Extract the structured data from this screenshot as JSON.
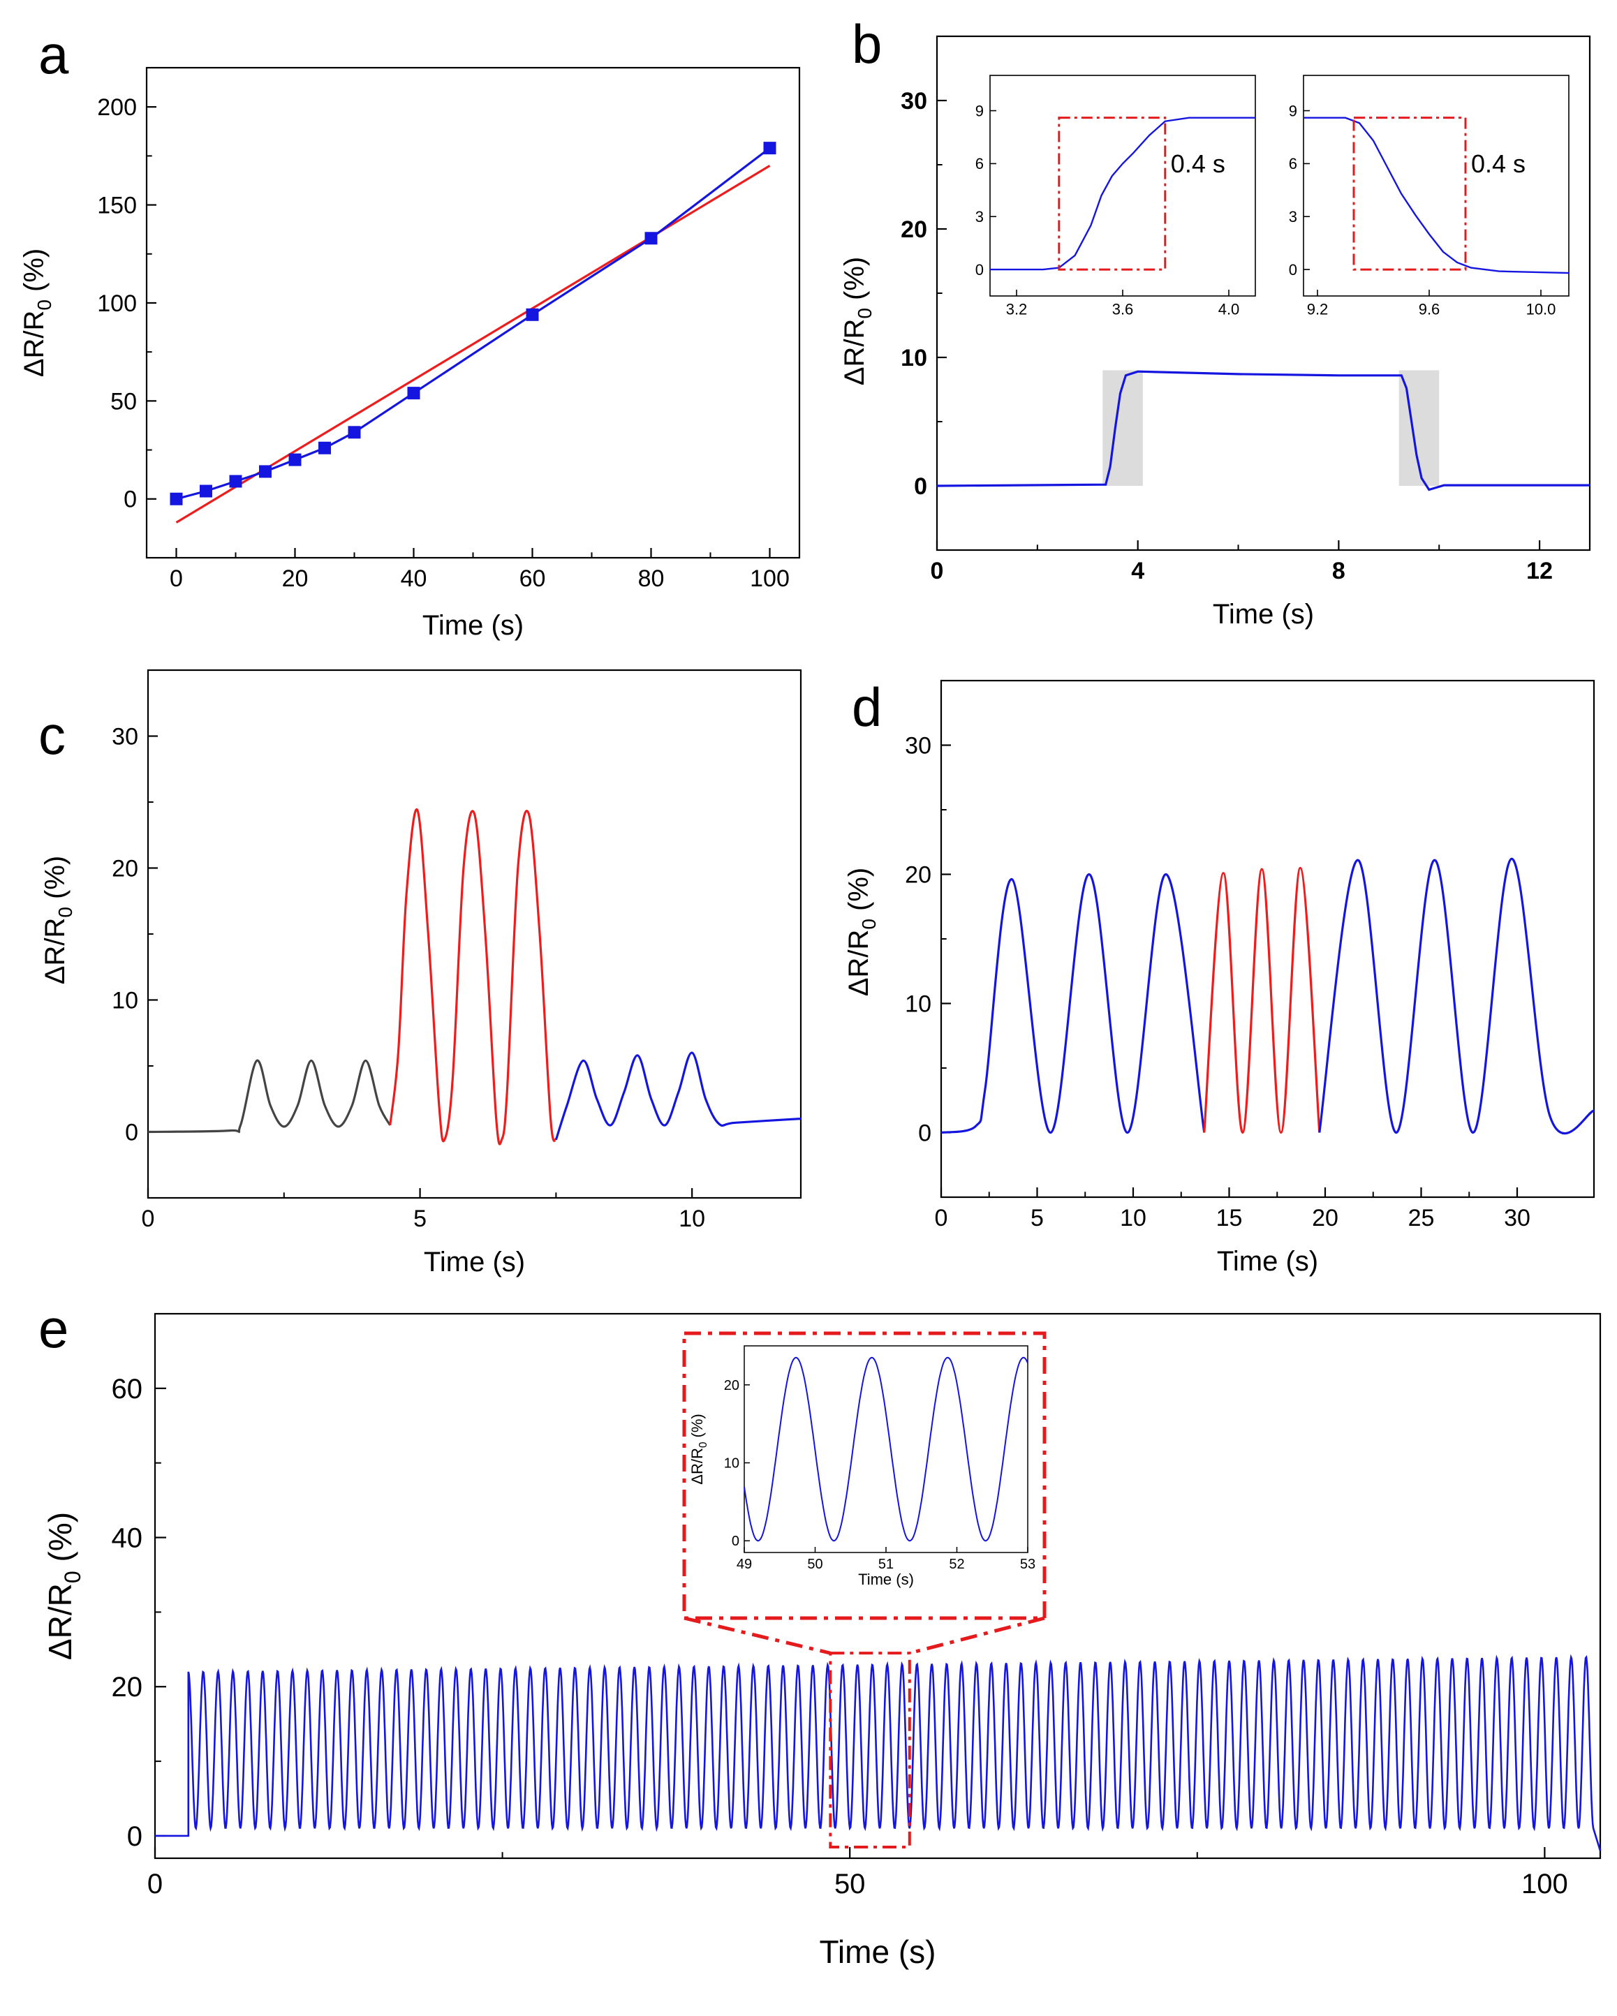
{
  "colors": {
    "blue": "#1515e0",
    "red": "#ee1c1c",
    "gray": "#444444",
    "shade": "#dcdcdc",
    "inset_red": "#e41a1c"
  },
  "chart_data": [
    {
      "id": "a",
      "letter": "a",
      "type": "scatter",
      "xlabel": "Time (s)",
      "ylabel_pre": "ΔR/R",
      "ylabel_sub": "0",
      "ylabel_post": " (%)",
      "xlim": [
        -5,
        105
      ],
      "ylim": [
        -30,
        220
      ],
      "xticks": [
        0,
        20,
        40,
        60,
        80,
        100
      ],
      "yticks": [
        0,
        50,
        100,
        150,
        200
      ],
      "series": [
        {
          "style": "marker-line",
          "color": "blue",
          "x": [
            0,
            5,
            10,
            15,
            20,
            25,
            30,
            40,
            60,
            80,
            100
          ],
          "y": [
            0,
            4,
            9,
            14,
            20,
            26,
            34,
            54,
            94,
            133,
            179
          ]
        },
        {
          "style": "fit-line",
          "color": "red",
          "x": [
            0,
            100
          ],
          "y": [
            -12,
            170
          ]
        }
      ]
    },
    {
      "id": "b",
      "letter": "b",
      "type": "line",
      "xlabel": "Time (s)",
      "ylabel_pre": "ΔR/R",
      "ylabel_sub": "0",
      "ylabel_post": " (%)",
      "xlim": [
        0,
        13
      ],
      "ylim": [
        -5,
        35
      ],
      "xticks": [
        0,
        4,
        8,
        12
      ],
      "yticks": [
        0,
        10,
        20,
        30
      ],
      "bold_ticks": true,
      "shaded": [
        [
          3.3,
          4.1
        ],
        [
          9.2,
          10.0
        ]
      ],
      "series": [
        {
          "color": "blue",
          "x": [
            0,
            3.36,
            3.45,
            3.55,
            3.65,
            3.76,
            4.0,
            6,
            8,
            9.25,
            9.35,
            9.45,
            9.55,
            9.65,
            9.8,
            10.1,
            13
          ],
          "y": [
            0,
            0.1,
            1.5,
            4.5,
            7.2,
            8.6,
            8.9,
            8.7,
            8.6,
            8.6,
            7.6,
            5.0,
            2.4,
            0.6,
            -0.3,
            0.05,
            0.05
          ]
        }
      ],
      "insets": [
        {
          "id": "b1",
          "xlim": [
            3.1,
            4.1
          ],
          "ylim": [
            -1.5,
            11
          ],
          "xticks": [
            3.2,
            3.6,
            4.0
          ],
          "yticks": [
            0,
            3,
            6,
            9
          ],
          "box": [
            3.36,
            3.76,
            0,
            8.6
          ],
          "label": "0.4 s",
          "x": [
            3.1,
            3.3,
            3.36,
            3.42,
            3.48,
            3.52,
            3.56,
            3.6,
            3.64,
            3.7,
            3.76,
            3.85,
            4.1
          ],
          "y": [
            0,
            0,
            0.1,
            0.8,
            2.5,
            4.2,
            5.3,
            6.0,
            6.6,
            7.6,
            8.4,
            8.6,
            8.6
          ]
        },
        {
          "id": "b2",
          "xlim": [
            9.15,
            10.1
          ],
          "ylim": [
            -1.5,
            11
          ],
          "xticks": [
            9.2,
            9.6,
            10.0
          ],
          "yticks": [
            0,
            3,
            6,
            9
          ],
          "box": [
            9.33,
            9.73,
            0,
            8.6
          ],
          "label": "0.4 s",
          "x": [
            9.15,
            9.3,
            9.35,
            9.4,
            9.45,
            9.5,
            9.55,
            9.6,
            9.65,
            9.7,
            9.75,
            9.85,
            10.1
          ],
          "y": [
            8.6,
            8.6,
            8.3,
            7.3,
            5.8,
            4.3,
            3.1,
            2.0,
            1.0,
            0.4,
            0.1,
            -0.1,
            -0.2
          ]
        }
      ]
    },
    {
      "id": "c",
      "letter": "c",
      "type": "line",
      "xlabel": "Time (s)",
      "ylabel_pre": "ΔR/R",
      "ylabel_sub": "0",
      "ylabel_post": " (%)",
      "xlim": [
        0,
        12
      ],
      "ylim": [
        -5,
        35
      ],
      "xticks": [
        0,
        5,
        10
      ],
      "yticks": [
        0,
        10,
        20,
        30
      ],
      "series": [
        {
          "color": "gray",
          "x": [
            0,
            1.5,
            1.7,
            2.0,
            2.25,
            2.5,
            2.75,
            3.0,
            3.25,
            3.5,
            3.75,
            4.0,
            4.25,
            4.45
          ],
          "y": [
            0,
            0.1,
            0.5,
            5.4,
            2.0,
            0.4,
            2.0,
            5.4,
            2.0,
            0.4,
            2.0,
            5.4,
            2.0,
            0.5
          ]
        },
        {
          "color": "red",
          "x": [
            4.45,
            4.6,
            4.75,
            4.95,
            5.15,
            5.35,
            5.45,
            5.6,
            5.8,
            6.0,
            6.2,
            6.4,
            6.5,
            6.6,
            6.8,
            7.0,
            7.2,
            7.4,
            7.5
          ],
          "y": [
            0.5,
            6,
            18,
            24.4,
            15,
            2,
            -0.6,
            4,
            20,
            24.1,
            15,
            1,
            -0.6,
            3,
            20,
            24.1,
            15,
            1,
            -0.6
          ]
        },
        {
          "color": "blue",
          "x": [
            7.5,
            7.7,
            8.0,
            8.25,
            8.5,
            8.75,
            9.0,
            9.25,
            9.5,
            9.75,
            10.0,
            10.25,
            10.5,
            10.8,
            12
          ],
          "y": [
            -0.6,
            2,
            5.4,
            2.5,
            0.5,
            3,
            5.8,
            2.5,
            0.5,
            3,
            6.0,
            2.5,
            0.6,
            0.7,
            1.0
          ]
        }
      ]
    },
    {
      "id": "d",
      "letter": "d",
      "type": "line",
      "xlabel": "Time (s)",
      "ylabel_pre": "ΔR/R",
      "ylabel_sub": "0",
      "ylabel_post": " (%)",
      "xlim": [
        0,
        34
      ],
      "ylim": [
        -5,
        35
      ],
      "xticks": [
        0,
        5,
        10,
        15,
        20,
        25,
        30
      ],
      "yticks": [
        0,
        10,
        20,
        30
      ],
      "series": [
        {
          "color": "blue",
          "x": [
            0,
            1.8,
            2.3,
            3.7,
            5.7,
            7.7,
            9.7,
            11.7,
            13.7
          ],
          "y": [
            0,
            0.5,
            3.5,
            19.6,
            0,
            20.0,
            0,
            20.0,
            0
          ]
        },
        {
          "color": "red",
          "x": [
            13.7,
            14.7,
            15.7,
            16.7,
            17.7,
            18.7,
            19.7
          ],
          "y": [
            0,
            20.1,
            0,
            20.4,
            0,
            20.5,
            0
          ]
        },
        {
          "color": "blue",
          "x": [
            19.7,
            21.7,
            23.7,
            25.7,
            27.7,
            29.7,
            31.7,
            34
          ],
          "y": [
            0,
            21.1,
            0,
            21.1,
            0,
            21.2,
            1.3,
            1.7
          ]
        }
      ]
    },
    {
      "id": "e",
      "letter": "e",
      "type": "line",
      "xlabel": "Time (s)",
      "ylabel_pre": "ΔR/R",
      "ylabel_sub": "0",
      "ylabel_post": " (%)",
      "xlim": [
        0,
        104
      ],
      "ylim": [
        -3,
        70
      ],
      "xticks": [
        0,
        50,
        100
      ],
      "yticks": [
        0,
        20,
        40,
        60
      ],
      "signal": {
        "start": 2.4,
        "end": 103.5,
        "period": 1.07,
        "min": 1.0,
        "peak_start": 22.0,
        "peak_end": 24.0,
        "baseline": 0
      },
      "zoom_box": [
        48.6,
        54.3,
        -1.5,
        24.5
      ],
      "inset": {
        "xlim": [
          49,
          53
        ],
        "ylim": [
          -1.5,
          25
        ],
        "xticks": [
          49,
          50,
          51,
          52,
          53
        ],
        "yticks": [
          0,
          10,
          20
        ],
        "xlabel": "Time (s)",
        "ylabel_pre": "ΔR/R",
        "ylabel_sub": "0",
        "ylabel_post": " (%)",
        "period": 1.07,
        "phase": 49.73,
        "peak": 23.5,
        "min": 0
      }
    }
  ]
}
